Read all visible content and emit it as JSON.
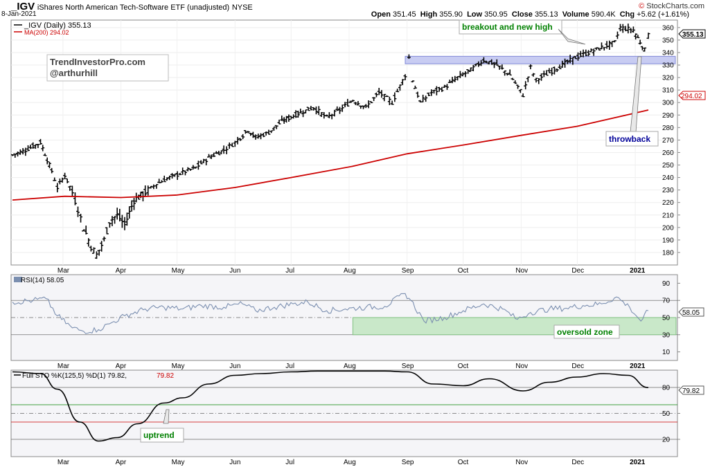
{
  "header": {
    "symbol": "_IGV",
    "description": "iShares North American Tech-Software ETF (unadjusted)",
    "exchange": "NYSE",
    "date": "8-Jan-2021",
    "open_label": "Open",
    "open": "351.45",
    "high_label": "High",
    "high": "355.90",
    "low_label": "Low",
    "low": "350.95",
    "close_label": "Close",
    "close": "355.13",
    "volume_label": "Volume",
    "volume": "590.4K",
    "chg_label": "Chg",
    "chg": "+5.62 (+1.61%)",
    "brand_prefix": "© ",
    "brand": "StockCharts.com"
  },
  "price_panel": {
    "legend_main": "_IGV (Daily) 355.13",
    "legend_ma": "MA(200) 294.02",
    "watermark_line1": "TrendInvestorPro.com",
    "watermark_line2": "@arthurhill",
    "last_price_tag": "355.13",
    "ma_tag": "294.02",
    "annotation_breakout": "breakout and new high",
    "annotation_throwback": "throwback"
  },
  "rsi_panel": {
    "legend": "RSI(14) 58.05",
    "value_tag": "58.05",
    "annotation_zone": "oversold zone"
  },
  "sto_panel": {
    "legend": "Full STO %K(125,5) %D(1) 79.82,",
    "legend_d": "79.82",
    "value_tag": "79.82",
    "annotation_uptrend": "uptrend"
  },
  "colors": {
    "price_bar": "#000000",
    "ma": "#cc0000",
    "rsi_line": "#7b8fb0",
    "sto_line": "#000000",
    "zone_fill": "#c9e8c9",
    "resistance_fill": "#c8ccf2",
    "annotation_green": "#008000",
    "annotation_blue": "#000099",
    "panel_bg": "#f5f5f8"
  },
  "chart_data": [
    {
      "type": "line",
      "title": "_IGV (Daily)",
      "x_tick_labels": [
        "Mar",
        "Apr",
        "May",
        "Jun",
        "Jul",
        "Aug",
        "Sep",
        "Oct",
        "Nov",
        "Dec",
        "2021"
      ],
      "y_ticks": [
        180,
        190,
        200,
        210,
        220,
        230,
        240,
        250,
        260,
        270,
        280,
        290,
        300,
        310,
        320,
        330,
        340,
        350,
        360
      ],
      "ylim": [
        170,
        366
      ],
      "series": [
        {
          "name": "_IGV",
          "x": [
            "2020-02-03",
            "2020-02-10",
            "2020-02-18",
            "2020-02-24",
            "2020-02-27",
            "2020-03-02",
            "2020-03-06",
            "2020-03-09",
            "2020-03-12",
            "2020-03-16",
            "2020-03-19",
            "2020-03-23",
            "2020-03-26",
            "2020-03-30",
            "2020-04-03",
            "2020-04-08",
            "2020-04-14",
            "2020-04-20",
            "2020-04-27",
            "2020-05-04",
            "2020-05-11",
            "2020-05-18",
            "2020-05-26",
            "2020-06-01",
            "2020-06-08",
            "2020-06-12",
            "2020-06-19",
            "2020-06-26",
            "2020-07-06",
            "2020-07-13",
            "2020-07-20",
            "2020-07-27",
            "2020-08-03",
            "2020-08-10",
            "2020-08-17",
            "2020-08-24",
            "2020-08-31",
            "2020-09-02",
            "2020-09-04",
            "2020-09-08",
            "2020-09-14",
            "2020-09-21",
            "2020-09-28",
            "2020-10-05",
            "2020-10-12",
            "2020-10-19",
            "2020-10-26",
            "2020-11-02",
            "2020-11-06",
            "2020-11-09",
            "2020-11-16",
            "2020-11-23",
            "2020-11-30",
            "2020-12-07",
            "2020-12-14",
            "2020-12-21",
            "2020-12-24",
            "2020-12-31",
            "2021-01-06",
            "2021-01-08"
          ],
          "values": [
            258,
            262,
            268,
            245,
            232,
            242,
            228,
            215,
            200,
            185,
            178,
            190,
            205,
            210,
            202,
            222,
            228,
            235,
            240,
            244,
            248,
            256,
            262,
            268,
            278,
            272,
            276,
            285,
            292,
            296,
            288,
            294,
            302,
            296,
            308,
            300,
            322,
            336,
            318,
            300,
            308,
            312,
            320,
            326,
            334,
            330,
            322,
            306,
            328,
            318,
            324,
            330,
            336,
            340,
            344,
            348,
            360,
            358,
            342,
            355.13
          ]
        },
        {
          "name": "MA(200)",
          "x": [
            "2020-02-03",
            "2020-03-02",
            "2020-04-01",
            "2020-05-01",
            "2020-06-01",
            "2020-07-01",
            "2020-08-03",
            "2020-09-01",
            "2020-10-01",
            "2020-11-02",
            "2020-12-01",
            "2021-01-08"
          ],
          "values": [
            222,
            225,
            224,
            226,
            232,
            240,
            249,
            259,
            266,
            274,
            281,
            294.02
          ]
        }
      ],
      "annotations": [
        "breakout and new high",
        "throwback"
      ],
      "resistance_zone": [
        331,
        337
      ]
    },
    {
      "type": "line",
      "title": "RSI(14)",
      "x_tick_labels": [
        "Mar",
        "Apr",
        "May",
        "Jun",
        "Jul",
        "Aug",
        "Sep",
        "Oct",
        "Nov",
        "Dec",
        "2021"
      ],
      "y_ticks": [
        10,
        30,
        50,
        70,
        90
      ],
      "ylim": [
        0,
        100
      ],
      "reference_lines": [
        30,
        50,
        70
      ],
      "zone": {
        "label": "oversold zone",
        "y_range": [
          30,
          50
        ],
        "x_start": "2020-08-03"
      },
      "series": [
        {
          "name": "RSI(14)",
          "x": [
            "2020-02-03",
            "2020-02-14",
            "2020-02-21",
            "2020-02-27",
            "2020-03-06",
            "2020-03-12",
            "2020-03-20",
            "2020-03-27",
            "2020-04-03",
            "2020-04-14",
            "2020-04-24",
            "2020-05-04",
            "2020-05-14",
            "2020-05-26",
            "2020-06-05",
            "2020-06-12",
            "2020-06-22",
            "2020-07-02",
            "2020-07-10",
            "2020-07-20",
            "2020-07-30",
            "2020-08-10",
            "2020-08-20",
            "2020-08-31",
            "2020-09-03",
            "2020-09-10",
            "2020-09-21",
            "2020-10-01",
            "2020-10-12",
            "2020-10-22",
            "2020-10-30",
            "2020-11-06",
            "2020-11-16",
            "2020-11-25",
            "2020-12-04",
            "2020-12-14",
            "2020-12-22",
            "2020-12-29",
            "2021-01-04",
            "2021-01-08"
          ],
          "values": [
            68,
            70,
            72,
            52,
            38,
            34,
            36,
            44,
            52,
            60,
            62,
            60,
            64,
            62,
            66,
            58,
            62,
            66,
            68,
            58,
            60,
            62,
            63,
            78,
            70,
            46,
            50,
            58,
            66,
            60,
            48,
            56,
            60,
            61,
            64,
            66,
            74,
            62,
            46,
            58.05
          ]
        }
      ]
    },
    {
      "type": "line",
      "title": "Full STO %K(125,5) %D(1)",
      "x_tick_labels": [
        "Mar",
        "Apr",
        "May",
        "Jun",
        "Jul",
        "Aug",
        "Sep",
        "Oct",
        "Nov",
        "Dec",
        "2021"
      ],
      "y_ticks": [
        20,
        50,
        80
      ],
      "ylim": [
        0,
        100
      ],
      "reference_lines": [
        20,
        40,
        50,
        60,
        80
      ],
      "annotations": [
        "uptrend"
      ],
      "series": [
        {
          "name": "%K",
          "x": [
            "2020-02-03",
            "2020-02-18",
            "2020-02-27",
            "2020-03-10",
            "2020-03-20",
            "2020-03-30",
            "2020-04-10",
            "2020-04-24",
            "2020-05-04",
            "2020-05-18",
            "2020-06-01",
            "2020-06-15",
            "2020-07-01",
            "2020-07-15",
            "2020-08-03",
            "2020-08-20",
            "2020-09-01",
            "2020-09-15",
            "2020-10-01",
            "2020-10-15",
            "2020-11-02",
            "2020-11-16",
            "2020-12-01",
            "2020-12-15",
            "2020-12-28",
            "2021-01-08"
          ],
          "values": [
            98,
            96,
            78,
            40,
            18,
            22,
            38,
            62,
            68,
            84,
            94,
            96,
            98,
            99,
            99,
            99,
            98,
            84,
            82,
            90,
            76,
            86,
            92,
            96,
            94,
            79.82
          ]
        }
      ]
    }
  ]
}
